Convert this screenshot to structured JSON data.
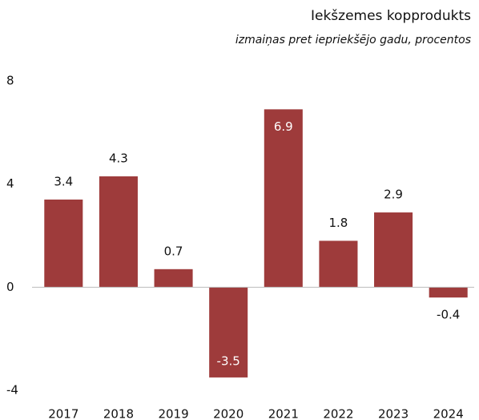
{
  "chart_data": {
    "type": "bar",
    "title": "Iekšzemes kopprodukts",
    "subtitle": "izmaiņas pret iepriekšējo gadu, procentos",
    "categories": [
      "2017",
      "2018",
      "2019",
      "2020",
      "2021",
      "2022",
      "2023",
      "2024"
    ],
    "values": [
      3.4,
      4.3,
      0.7,
      -3.5,
      6.9,
      1.8,
      2.9,
      -0.4
    ],
    "color": "#9e3b3b",
    "ylim": [
      -4,
      8
    ],
    "yticks": [
      -4,
      0,
      4,
      8
    ],
    "grid": false
  }
}
